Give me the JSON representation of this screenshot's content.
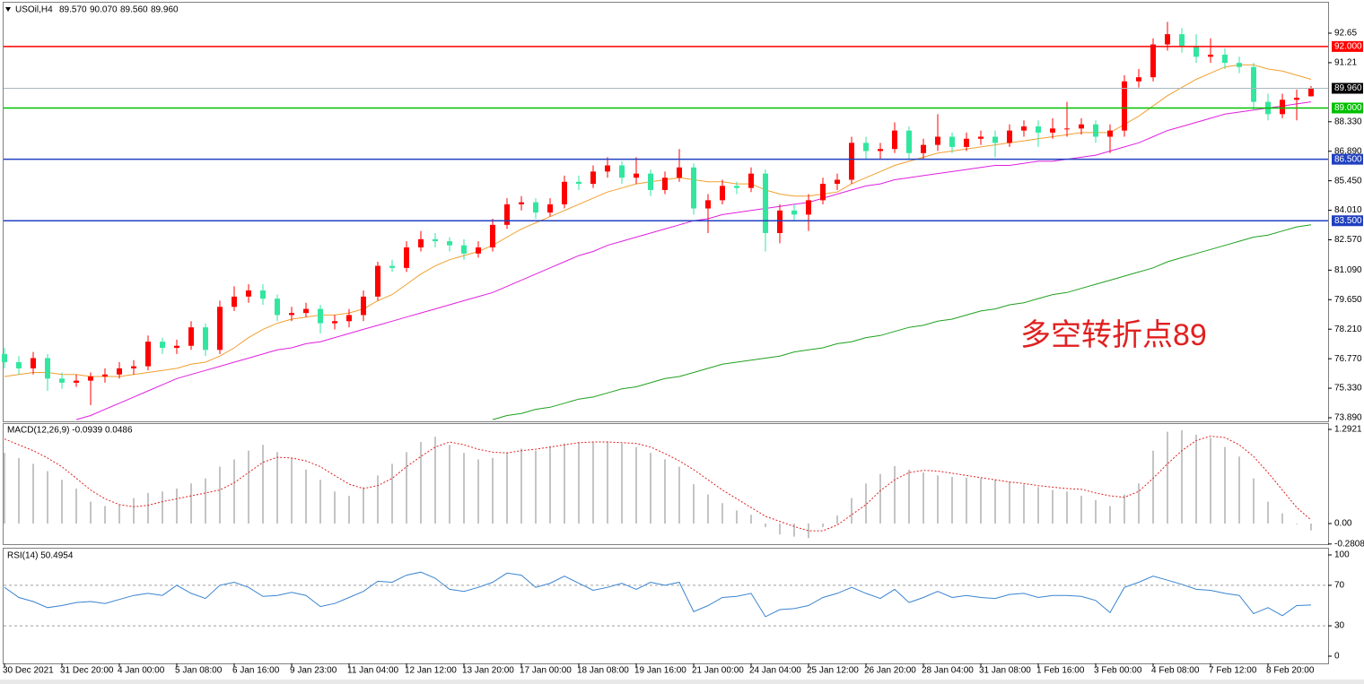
{
  "chart_data": [
    {
      "type": "candlestick",
      "symbol": "USOil,H4",
      "quote": [
        "89.570",
        "90.070",
        "89.560",
        "89.960"
      ],
      "annotation": "多空转折点89",
      "up_color": "#ff0000",
      "down_color": "#33e6a0",
      "ylim": [
        73.715,
        94.137
      ],
      "yticks": [
        92.65,
        91.21,
        {
          "value": 88.33,
          "label": "88.330"
        },
        {
          "value": 86.89,
          "label": "86.890"
        },
        {
          "value": 85.45,
          "label": "85.450"
        },
        {
          "value": 84.01,
          "label": "84.010"
        },
        {
          "value": 82.57,
          "label": "82.570"
        },
        {
          "value": 81.09,
          "label": "81.090"
        },
        {
          "value": 79.65,
          "label": "79.650"
        },
        {
          "value": 78.21,
          "label": "78.210"
        },
        {
          "value": 76.77,
          "label": "76.770"
        },
        {
          "value": 75.33,
          "label": "75.330"
        },
        {
          "value": 73.89,
          "label": "73.890"
        }
      ],
      "hlines": [
        {
          "value": 92,
          "label": "92.000",
          "color": "#ff0000",
          "box": "#ff0000"
        },
        {
          "value": 89.96,
          "label": "89.960",
          "color": "#a8b8c0",
          "box": "#000000"
        },
        {
          "value": 89,
          "label": "89.000",
          "color": "#00c000",
          "box": "#00c000"
        },
        {
          "value": 86.5,
          "label": "86.500",
          "color": "#2040c0",
          "box": "#2040c0"
        },
        {
          "value": 83.5,
          "label": "83.500",
          "color": "#2040c0",
          "box": "#2040c0"
        }
      ],
      "categories": [
        "30 Dec 2021",
        null,
        null,
        null,
        "31 Dec 20:00",
        null,
        null,
        null,
        "4 Jan 00:00",
        null,
        null,
        null,
        "5 Jan 08:00",
        null,
        null,
        null,
        "6 Jan 16:00",
        null,
        null,
        null,
        "9 Jan 23:00",
        null,
        null,
        null,
        "11 Jan 04:00",
        null,
        null,
        null,
        "12 Jan 12:00",
        null,
        null,
        null,
        "13 Jan 20:00",
        null,
        null,
        null,
        "17 Jan 00:00",
        null,
        null,
        null,
        "18 Jan 08:00",
        null,
        null,
        null,
        "19 Jan 16:00",
        null,
        null,
        null,
        "21 Jan 00:00",
        null,
        null,
        null,
        "24 Jan 04:00",
        null,
        null,
        null,
        "25 Jan 12:00",
        null,
        null,
        null,
        "26 Jan 20:00",
        null,
        null,
        null,
        "28 Jan 04:00",
        null,
        null,
        null,
        "31 Jan 08:00",
        null,
        null,
        null,
        "1 Feb 16:00",
        null,
        null,
        null,
        "3 Feb 00:00",
        null,
        null,
        null,
        "4 Feb 08:00",
        null,
        null,
        null,
        "7 Feb 12:00",
        null,
        null,
        null,
        "8 Feb 20:00",
        null,
        null,
        null
      ],
      "open": [
        77.0,
        76.6,
        76.3,
        76.8,
        75.8,
        75.6,
        75.7,
        75.9,
        76.0,
        76.3,
        76.4,
        77.6,
        77.3,
        77.4,
        78.3,
        77.2,
        79.3,
        79.8,
        80.1,
        79.7,
        78.9,
        79.0,
        79.2,
        78.5,
        78.6,
        78.9,
        79.8,
        81.3,
        81.2,
        82.2,
        82.6,
        82.5,
        82.3,
        81.9,
        82.2,
        83.3,
        84.3,
        84.4,
        83.9,
        84.3,
        85.4,
        85.3,
        85.9,
        86.2,
        85.6,
        85.8,
        85.0,
        85.6,
        86.1,
        84.1,
        84.5,
        85.2,
        85.1,
        85.8,
        82.9,
        84.0,
        83.8,
        84.5,
        85.3,
        85.5,
        87.3,
        86.9,
        87.0,
        87.9,
        86.8,
        87.2,
        87.6,
        87.1,
        87.5,
        87.6,
        87.3,
        87.9,
        88.1,
        87.8,
        88.0,
        88.0,
        88.2,
        87.6,
        87.9,
        90.3,
        90.5,
        92.1,
        92.6,
        92.0,
        91.5,
        91.6,
        91.2,
        91.0,
        89.3,
        88.7,
        89.4,
        89.57
      ],
      "high": [
        77.3,
        76.9,
        77.1,
        77.0,
        76.1,
        76.0,
        76.1,
        76.3,
        76.6,
        76.7,
        77.9,
        77.8,
        77.7,
        78.6,
        78.5,
        79.6,
        80.3,
        80.4,
        80.4,
        79.9,
        79.3,
        79.5,
        79.4,
        78.9,
        79.2,
        80.1,
        81.5,
        81.6,
        82.5,
        83.0,
        82.9,
        82.7,
        82.6,
        82.5,
        83.6,
        84.6,
        84.7,
        84.6,
        84.6,
        85.7,
        85.7,
        86.2,
        86.6,
        86.4,
        86.6,
        86.0,
        85.9,
        87.0,
        86.3,
        84.8,
        85.5,
        85.4,
        86.1,
        86.0,
        84.3,
        84.3,
        84.8,
        85.6,
        85.8,
        87.6,
        87.6,
        87.3,
        88.3,
        88.1,
        87.5,
        88.7,
        87.8,
        87.8,
        87.9,
        87.9,
        88.2,
        88.4,
        88.4,
        88.5,
        89.3,
        88.5,
        88.4,
        88.2,
        90.6,
        90.9,
        92.4,
        93.2,
        92.9,
        92.6,
        92.4,
        91.9,
        91.5,
        91.2,
        89.7,
        89.7,
        89.9,
        90.07
      ],
      "low": [
        76.3,
        76.0,
        76.0,
        75.2,
        75.3,
        75.4,
        74.5,
        75.6,
        75.8,
        76.0,
        76.2,
        77.0,
        77.0,
        77.2,
        76.9,
        77.0,
        79.1,
        79.5,
        79.4,
        78.6,
        78.6,
        78.8,
        78.0,
        78.2,
        78.3,
        78.6,
        79.6,
        81.0,
        81.0,
        82.0,
        82.2,
        82.0,
        81.6,
        81.7,
        82.0,
        83.1,
        84.0,
        83.6,
        83.7,
        84.1,
        85.0,
        85.1,
        85.6,
        85.3,
        85.3,
        84.7,
        84.8,
        85.4,
        83.8,
        82.9,
        84.3,
        84.8,
        84.9,
        82.0,
        82.4,
        83.5,
        83.0,
        84.3,
        85.0,
        85.3,
        86.5,
        86.5,
        86.8,
        86.5,
        86.5,
        86.9,
        86.8,
        86.9,
        87.2,
        86.6,
        87.1,
        87.6,
        87.1,
        87.5,
        87.6,
        87.7,
        87.3,
        86.8,
        87.6,
        90.0,
        90.3,
        91.8,
        91.7,
        91.2,
        91.2,
        90.9,
        90.7,
        88.9,
        88.4,
        88.5,
        88.4,
        89.56
      ],
      "close": [
        76.6,
        76.3,
        76.8,
        75.8,
        75.6,
        75.7,
        75.9,
        76.0,
        76.3,
        76.4,
        77.6,
        77.3,
        77.4,
        78.3,
        77.2,
        79.3,
        79.8,
        80.1,
        79.7,
        78.9,
        79.0,
        79.2,
        78.5,
        78.6,
        78.9,
        79.8,
        81.3,
        81.2,
        82.2,
        82.6,
        82.5,
        82.3,
        81.9,
        82.2,
        83.3,
        84.3,
        84.4,
        83.9,
        84.3,
        85.4,
        85.3,
        85.9,
        86.2,
        85.6,
        85.8,
        85.0,
        85.6,
        86.1,
        84.1,
        84.5,
        85.2,
        85.1,
        85.8,
        82.9,
        84.0,
        83.8,
        84.5,
        85.3,
        85.5,
        87.3,
        86.9,
        87.0,
        87.9,
        86.8,
        87.2,
        87.6,
        87.1,
        87.5,
        87.6,
        87.3,
        87.9,
        88.1,
        87.8,
        88.0,
        88.0,
        88.2,
        87.6,
        87.9,
        90.3,
        90.5,
        92.1,
        92.6,
        92.0,
        91.5,
        91.6,
        91.2,
        91.0,
        89.3,
        88.7,
        89.4,
        89.5,
        89.96
      ],
      "moving_averages": [
        {
          "color": "#f0a030",
          "values": [
            75.9,
            76.0,
            76.1,
            76.1,
            76.0,
            76.0,
            75.9,
            75.9,
            75.9,
            76.0,
            76.1,
            76.2,
            76.3,
            76.5,
            76.6,
            76.9,
            77.3,
            77.8,
            78.2,
            78.5,
            78.7,
            78.8,
            78.9,
            78.9,
            79.0,
            79.2,
            79.6,
            79.9,
            80.4,
            80.9,
            81.3,
            81.6,
            81.8,
            82.0,
            82.3,
            82.7,
            83.1,
            83.4,
            83.7,
            84.0,
            84.3,
            84.6,
            84.9,
            85.1,
            85.3,
            85.4,
            85.5,
            85.6,
            85.5,
            85.4,
            85.4,
            85.3,
            85.3,
            85.0,
            84.8,
            84.7,
            84.7,
            84.8,
            84.9,
            85.3,
            85.6,
            85.9,
            86.2,
            86.4,
            86.6,
            86.8,
            86.9,
            87.0,
            87.1,
            87.2,
            87.3,
            87.4,
            87.5,
            87.6,
            87.7,
            87.8,
            87.8,
            87.8,
            88.2,
            88.6,
            89.1,
            89.6,
            90.0,
            90.4,
            90.7,
            91.0,
            91.1,
            91.1,
            90.9,
            90.8,
            90.6,
            90.4
          ]
        },
        {
          "color": "#e020e0",
          "values": [
            null,
            null,
            null,
            null,
            null,
            73.8,
            74.0,
            74.3,
            74.6,
            74.9,
            75.2,
            75.5,
            75.8,
            76.0,
            76.2,
            76.4,
            76.6,
            76.8,
            77.0,
            77.2,
            77.3,
            77.5,
            77.6,
            77.8,
            78.0,
            78.2,
            78.4,
            78.6,
            78.8,
            79.0,
            79.2,
            79.4,
            79.6,
            79.8,
            80.0,
            80.3,
            80.6,
            80.9,
            81.2,
            81.5,
            81.8,
            82.0,
            82.3,
            82.5,
            82.7,
            82.9,
            83.1,
            83.3,
            83.5,
            83.6,
            83.8,
            83.9,
            84.0,
            84.1,
            84.2,
            84.3,
            84.4,
            84.6,
            84.8,
            85.0,
            85.2,
            85.3,
            85.5,
            85.6,
            85.7,
            85.8,
            85.9,
            86.0,
            86.1,
            86.2,
            86.2,
            86.3,
            86.4,
            86.4,
            86.5,
            86.6,
            86.7,
            86.9,
            87.1,
            87.3,
            87.6,
            87.9,
            88.1,
            88.3,
            88.5,
            88.7,
            88.8,
            88.9,
            89.0,
            89.1,
            89.2,
            89.3
          ]
        },
        {
          "color": "#20a020",
          "values": [
            null,
            null,
            null,
            null,
            null,
            null,
            null,
            null,
            null,
            null,
            null,
            null,
            null,
            null,
            null,
            null,
            null,
            null,
            null,
            null,
            null,
            null,
            null,
            null,
            null,
            null,
            null,
            null,
            null,
            null,
            null,
            null,
            null,
            null,
            73.8,
            74.0,
            74.1,
            74.3,
            74.4,
            74.6,
            74.8,
            74.9,
            75.1,
            75.3,
            75.4,
            75.6,
            75.8,
            75.9,
            76.1,
            76.3,
            76.5,
            76.6,
            76.7,
            76.8,
            76.9,
            77.1,
            77.2,
            77.3,
            77.5,
            77.6,
            77.8,
            77.9,
            78.1,
            78.3,
            78.4,
            78.6,
            78.7,
            78.9,
            79.1,
            79.2,
            79.4,
            79.5,
            79.7,
            79.9,
            80.0,
            80.2,
            80.4,
            80.6,
            80.8,
            81.0,
            81.2,
            81.5,
            81.7,
            81.9,
            82.1,
            82.3,
            82.5,
            82.7,
            82.8,
            83.0,
            83.2,
            83.3
          ]
        }
      ]
    },
    {
      "type": "macd",
      "label": "MACD(12,26,9) -0.0939 0.0486",
      "ylim": [
        -0.283,
        1.366
      ],
      "yticks": [
        1.2921,
        {
          "value": 0,
          "label": "0.00"
        },
        -0.2808
      ],
      "histogram_color": "#b0b0b0",
      "signal_color": "#e02020",
      "histogram": [
        0.97,
        0.9,
        0.82,
        0.72,
        0.6,
        0.48,
        0.3,
        0.24,
        0.26,
        0.35,
        0.42,
        0.44,
        0.48,
        0.55,
        0.62,
        0.78,
        0.88,
        1.0,
        1.08,
        0.98,
        0.9,
        0.74,
        0.6,
        0.44,
        0.38,
        0.5,
        0.66,
        0.82,
        0.98,
        1.12,
        1.19,
        1.08,
        0.97,
        0.88,
        0.9,
        0.98,
        1.03,
        1.0,
        1.06,
        1.1,
        1.12,
        1.12,
        1.13,
        1.1,
        1.05,
        0.97,
        0.88,
        0.78,
        0.54,
        0.4,
        0.28,
        0.18,
        0.12,
        -0.05,
        -0.15,
        -0.18,
        -0.2,
        -0.05,
        0.11,
        0.35,
        0.55,
        0.68,
        0.79,
        0.74,
        0.7,
        0.66,
        0.64,
        0.63,
        0.62,
        0.6,
        0.58,
        0.54,
        0.5,
        0.46,
        0.44,
        0.38,
        0.32,
        0.24,
        0.4,
        0.55,
        1.0,
        1.26,
        1.28,
        1.22,
        1.18,
        1.05,
        0.92,
        0.62,
        0.3,
        0.14,
        -0.01,
        -0.0939
      ],
      "signal": [
        1.16,
        1.08,
        1.0,
        0.9,
        0.78,
        0.62,
        0.46,
        0.34,
        0.26,
        0.23,
        0.25,
        0.3,
        0.34,
        0.38,
        0.42,
        0.46,
        0.56,
        0.7,
        0.84,
        0.91,
        0.9,
        0.86,
        0.78,
        0.66,
        0.54,
        0.48,
        0.52,
        0.62,
        0.78,
        0.92,
        1.05,
        1.12,
        1.08,
        1.02,
        0.98,
        0.97,
        1.0,
        1.02,
        1.05,
        1.08,
        1.11,
        1.12,
        1.12,
        1.11,
        1.1,
        1.05,
        0.96,
        0.86,
        0.74,
        0.6,
        0.46,
        0.34,
        0.22,
        0.1,
        0.03,
        -0.04,
        -0.1,
        -0.1,
        -0.02,
        0.12,
        0.26,
        0.45,
        0.6,
        0.7,
        0.73,
        0.72,
        0.69,
        0.66,
        0.63,
        0.6,
        0.57,
        0.55,
        0.52,
        0.5,
        0.48,
        0.47,
        0.42,
        0.38,
        0.36,
        0.44,
        0.62,
        0.82,
        1.0,
        1.14,
        1.2,
        1.18,
        1.08,
        0.92,
        0.7,
        0.46,
        0.22,
        0.0486
      ]
    },
    {
      "type": "line",
      "label": "RSI(14) 50.4954",
      "ylim": [
        -7.1,
        106.2
      ],
      "yticks": [
        100,
        70,
        30,
        0
      ],
      "color": "#3a84d0",
      "values": [
        68,
        58,
        54,
        48,
        50,
        53,
        54,
        52,
        56,
        60,
        62,
        60,
        70,
        62,
        57,
        70,
        73,
        68,
        59,
        60,
        63,
        60,
        49,
        52,
        58,
        64,
        74,
        73,
        80,
        83,
        77,
        66,
        64,
        68,
        73,
        82,
        80,
        68,
        72,
        79,
        72,
        65,
        68,
        72,
        66,
        73,
        70,
        73,
        44,
        50,
        58,
        59,
        62,
        39,
        46,
        47,
        50,
        58,
        62,
        68,
        62,
        57,
        66,
        53,
        58,
        64,
        58,
        60,
        58,
        57,
        61,
        62,
        58,
        60,
        60,
        59,
        55,
        43,
        68,
        73,
        79,
        75,
        71,
        66,
        65,
        62,
        60,
        42,
        48,
        40,
        50,
        50.4954
      ]
    }
  ]
}
